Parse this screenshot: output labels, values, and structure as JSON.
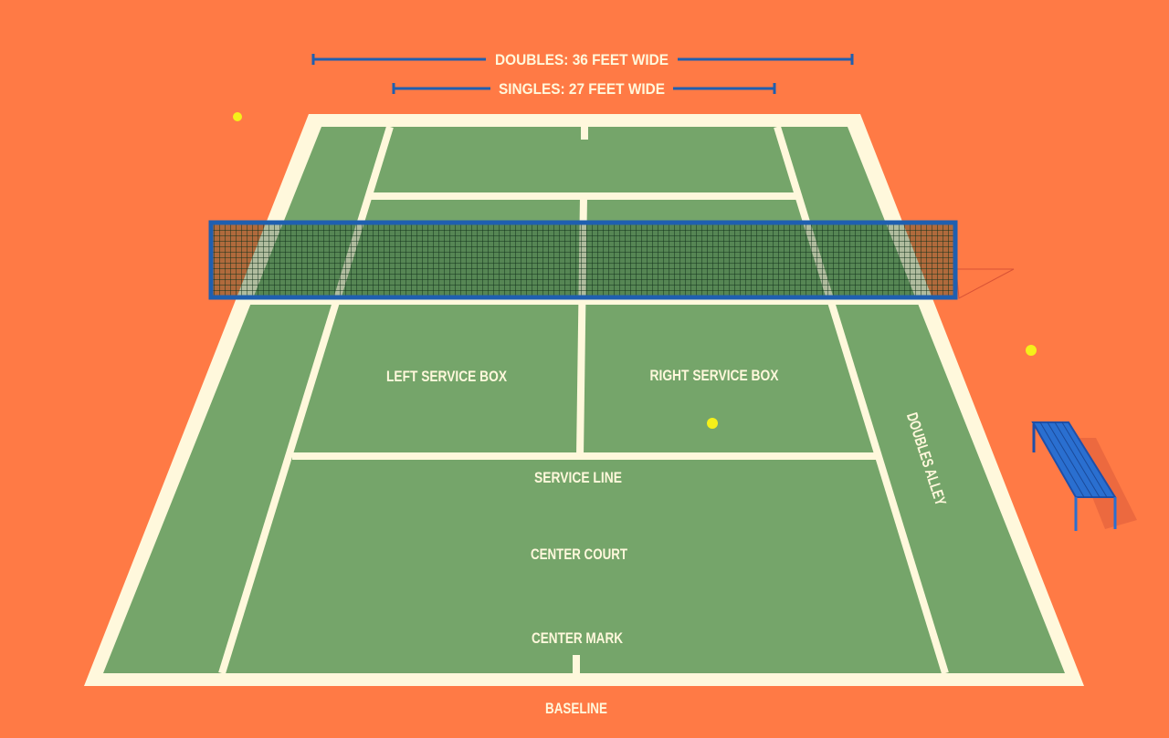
{
  "colors": {
    "background": "#FF7A45",
    "court": "#75A56A",
    "lines": "#FFF8DC",
    "net_frame": "#1F5FB0",
    "ball": "#F5F01A",
    "bench": "#2A6FD0"
  },
  "dimensions": {
    "doubles": "DOUBLES: 36 FEET WIDE",
    "singles": "SINGLES: 27 FEET WIDE"
  },
  "labels": {
    "left_service_box": "LEFT SERVICE BOX",
    "right_service_box": "RIGHT SERVICE BOX",
    "service_line": "SERVICE LINE",
    "center_court": "CENTER COURT",
    "center_mark": "CENTER MARK",
    "baseline": "BASELINE",
    "doubles_alley": "DOUBLES ALLEY"
  }
}
